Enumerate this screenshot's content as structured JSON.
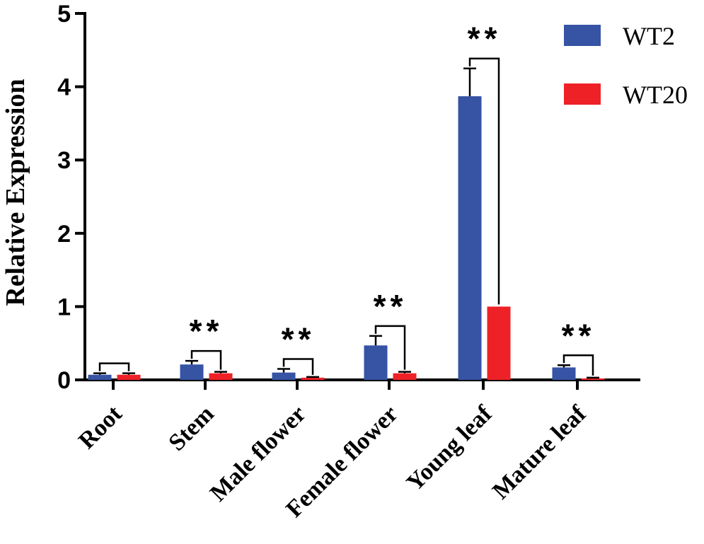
{
  "chart_data": {
    "type": "bar",
    "title": "",
    "xlabel": "",
    "ylabel": "Relative Expression",
    "ylim": [
      0,
      5
    ],
    "yticks": [
      0,
      1,
      2,
      3,
      4,
      5
    ],
    "grid": false,
    "legend_position": "top-right",
    "categories": [
      "Root",
      "Stem",
      "Male flower",
      "Female flower",
      "Young leaf",
      "Mature leaf"
    ],
    "series": [
      {
        "name": "WT2",
        "color": "#3653A4",
        "values": [
          0.07,
          0.21,
          0.1,
          0.47,
          3.87,
          0.17
        ],
        "errors": [
          0.02,
          0.05,
          0.05,
          0.13,
          0.38,
          0.03
        ]
      },
      {
        "name": "WT20",
        "color": "#EE2127",
        "values": [
          0.07,
          0.09,
          0.03,
          0.09,
          1.0,
          0.02
        ],
        "errors": [
          0.02,
          0.02,
          0.01,
          0.02,
          0.0,
          0.01
        ]
      }
    ],
    "significance": [
      "",
      "**",
      "**",
      "**",
      "**",
      "**"
    ]
  }
}
